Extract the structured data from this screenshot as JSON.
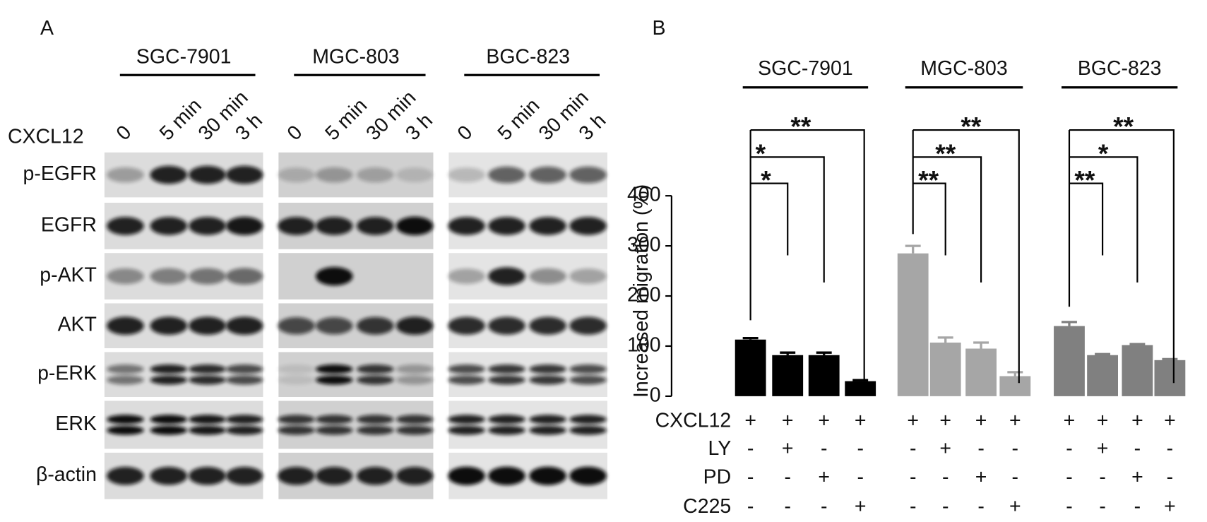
{
  "panel_a": {
    "label": "A",
    "row_label": "CXCL12",
    "cell_lines": [
      "SGC-7901",
      "MGC-803",
      "BGC-823"
    ],
    "time_points": [
      "0",
      "5 min",
      "30 min",
      "3 h"
    ],
    "proteins": [
      "p-EGFR",
      "EGFR",
      "p-AKT",
      "AKT",
      "p-ERK",
      "ERK",
      "β-actin"
    ]
  },
  "chart_data": {
    "type": "bar",
    "panel_label": "B",
    "y_label": "Increased migration (%)",
    "ylim": [
      0,
      400
    ],
    "yticks": [
      0,
      100,
      200,
      300,
      400
    ],
    "series": [
      {
        "name": "SGC-7901",
        "color": "#000000",
        "values": [
          113,
          82,
          82,
          30
        ],
        "errors": [
          3,
          5,
          5,
          2
        ]
      },
      {
        "name": "MGC-803",
        "color": "#a6a6a6",
        "values": [
          285,
          107,
          95,
          40
        ],
        "errors": [
          15,
          10,
          12,
          8
        ]
      },
      {
        "name": "BGC-823",
        "color": "#808080",
        "values": [
          140,
          82,
          102,
          72
        ],
        "errors": [
          8,
          2,
          2,
          2
        ]
      }
    ],
    "significance": [
      [
        "*",
        "*",
        "**"
      ],
      [
        "**",
        "**",
        "**"
      ],
      [
        "**",
        "*",
        "**"
      ]
    ],
    "treatments": [
      {
        "name": "CXCL12",
        "signs": [
          "+",
          "+",
          "+",
          "+",
          "+",
          "+",
          "+",
          "+",
          "+",
          "+",
          "+",
          "+"
        ]
      },
      {
        "name": "LY",
        "signs": [
          "-",
          "+",
          "-",
          "-",
          "-",
          "+",
          "-",
          "-",
          "-",
          "+",
          "-",
          "-"
        ]
      },
      {
        "name": "PD",
        "signs": [
          "-",
          "-",
          "+",
          "-",
          "-",
          "-",
          "+",
          "-",
          "-",
          "-",
          "+",
          "-"
        ]
      },
      {
        "name": "C225",
        "signs": [
          "-",
          "-",
          "-",
          "+",
          "-",
          "-",
          "-",
          "+",
          "-",
          "-",
          "-",
          "+"
        ]
      }
    ]
  }
}
